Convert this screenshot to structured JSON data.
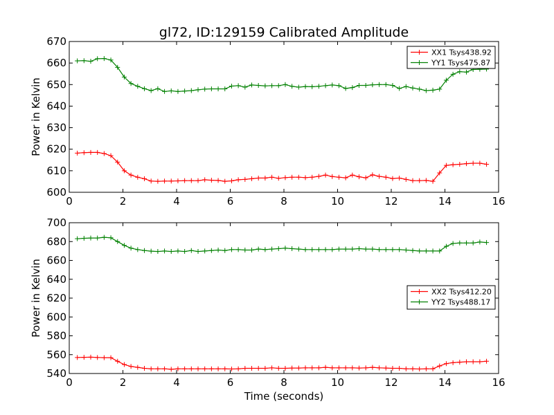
{
  "figure": {
    "title": "gl72, ID:129159 Calibrated Amplitude",
    "xlabel": "Time (seconds)"
  },
  "chart_data": [
    {
      "type": "line",
      "ylabel": "Power in Kelvin",
      "xlim": [
        0,
        16
      ],
      "ylim": [
        600,
        670
      ],
      "xticks": [
        0,
        2,
        4,
        6,
        8,
        10,
        12,
        14,
        16
      ],
      "yticks": [
        600,
        610,
        620,
        630,
        640,
        650,
        660,
        670
      ],
      "grid": false,
      "legend_position": "top-right",
      "x": [
        0.3,
        0.55,
        0.8,
        1.05,
        1.3,
        1.55,
        1.8,
        2.05,
        2.3,
        2.55,
        2.8,
        3.05,
        3.3,
        3.55,
        3.8,
        4.05,
        4.3,
        4.55,
        4.8,
        5.05,
        5.3,
        5.55,
        5.8,
        6.05,
        6.3,
        6.55,
        6.8,
        7.05,
        7.3,
        7.55,
        7.8,
        8.05,
        8.3,
        8.55,
        8.8,
        9.05,
        9.3,
        9.55,
        9.8,
        10.05,
        10.3,
        10.55,
        10.8,
        11.05,
        11.3,
        11.55,
        11.8,
        12.05,
        12.3,
        12.55,
        12.8,
        13.05,
        13.3,
        13.55,
        13.8,
        14.05,
        14.3,
        14.55,
        14.8,
        15.05,
        15.3,
        15.55
      ],
      "series": [
        {
          "name": "XX1 Tsys438.92",
          "color": "#ff0000",
          "values": [
            618.2,
            618.4,
            618.5,
            618.5,
            618.0,
            617.0,
            614.0,
            610.0,
            608.0,
            607.0,
            606.3,
            605.2,
            605.1,
            605.2,
            605.2,
            605.3,
            605.4,
            605.4,
            605.4,
            605.8,
            605.6,
            605.5,
            605.1,
            605.3,
            605.8,
            606.0,
            606.3,
            606.6,
            606.6,
            607.0,
            606.5,
            606.8,
            607.0,
            607.0,
            606.8,
            607.0,
            607.4,
            608.0,
            607.3,
            607.0,
            606.7,
            608.0,
            607.2,
            606.7,
            608.1,
            607.4,
            607.0,
            606.4,
            606.6,
            606.0,
            605.4,
            605.4,
            605.5,
            605.1,
            609.0,
            612.5,
            612.8,
            613.0,
            613.3,
            613.5,
            613.5,
            613.0
          ]
        },
        {
          "name": "YY1 Tsys475.87",
          "color": "#008000",
          "values": [
            661.0,
            661.1,
            660.8,
            662.0,
            662.1,
            661.4,
            658.0,
            653.5,
            650.5,
            649.2,
            648.1,
            647.2,
            648.1,
            646.8,
            647.1,
            646.8,
            647.0,
            647.2,
            647.6,
            647.9,
            648.0,
            648.0,
            648.0,
            649.3,
            649.5,
            648.8,
            649.8,
            649.6,
            649.4,
            649.5,
            649.5,
            650.0,
            649.2,
            648.8,
            649.1,
            649.0,
            649.2,
            649.5,
            649.8,
            649.5,
            648.2,
            648.6,
            649.6,
            649.6,
            649.9,
            650.0,
            650.0,
            649.6,
            648.2,
            649.1,
            648.4,
            647.9,
            647.2,
            647.4,
            647.9,
            652.0,
            654.8,
            656.0,
            655.8,
            657.0,
            657.1,
            657.2
          ]
        }
      ]
    },
    {
      "type": "line",
      "ylabel": "Power in Kelvin",
      "xlabel": "Time (seconds)",
      "xlim": [
        0,
        16
      ],
      "ylim": [
        540,
        700
      ],
      "xticks": [
        0,
        2,
        4,
        6,
        8,
        10,
        12,
        14,
        16
      ],
      "yticks": [
        540,
        560,
        580,
        600,
        620,
        640,
        660,
        680,
        700
      ],
      "grid": false,
      "legend_position": "center-right",
      "x": [
        0.3,
        0.55,
        0.8,
        1.05,
        1.3,
        1.55,
        1.8,
        2.05,
        2.3,
        2.55,
        2.8,
        3.05,
        3.3,
        3.55,
        3.8,
        4.05,
        4.3,
        4.55,
        4.8,
        5.05,
        5.3,
        5.55,
        5.8,
        6.05,
        6.3,
        6.55,
        6.8,
        7.05,
        7.3,
        7.55,
        7.8,
        8.05,
        8.3,
        8.55,
        8.8,
        9.05,
        9.3,
        9.55,
        9.8,
        10.05,
        10.3,
        10.55,
        10.8,
        11.05,
        11.3,
        11.55,
        11.8,
        12.05,
        12.3,
        12.55,
        12.8,
        13.05,
        13.3,
        13.55,
        13.8,
        14.05,
        14.3,
        14.55,
        14.8,
        15.05,
        15.3,
        15.55
      ],
      "series": [
        {
          "name": "XX2 Tsys412.20",
          "color": "#ff0000",
          "values": [
            557.0,
            557.2,
            557.3,
            557.0,
            556.8,
            556.8,
            553.0,
            549.5,
            547.5,
            546.5,
            545.5,
            545.0,
            545.0,
            545.0,
            544.5,
            545.0,
            545.0,
            545.0,
            545.0,
            545.0,
            545.0,
            545.0,
            545.0,
            544.8,
            545.0,
            545.5,
            545.5,
            545.5,
            545.5,
            546.0,
            545.5,
            545.5,
            545.8,
            545.8,
            546.0,
            546.0,
            546.0,
            546.5,
            546.0,
            546.0,
            546.0,
            546.0,
            545.8,
            546.0,
            546.5,
            546.0,
            545.8,
            545.5,
            545.5,
            545.0,
            545.0,
            544.8,
            545.0,
            545.0,
            548.0,
            550.5,
            551.5,
            552.0,
            552.5,
            552.5,
            552.5,
            553.0
          ]
        },
        {
          "name": "YY2 Tsys488.17",
          "color": "#008000",
          "values": [
            683.0,
            683.5,
            683.8,
            683.8,
            684.5,
            684.0,
            680.0,
            676.0,
            673.0,
            671.5,
            670.5,
            669.8,
            669.5,
            670.0,
            669.5,
            670.0,
            669.5,
            670.5,
            669.5,
            670.0,
            670.5,
            671.0,
            670.5,
            671.5,
            671.5,
            671.0,
            671.0,
            672.0,
            671.5,
            672.0,
            672.5,
            673.0,
            672.5,
            672.0,
            671.5,
            671.5,
            671.5,
            671.5,
            671.5,
            672.0,
            672.0,
            672.0,
            672.5,
            672.0,
            672.0,
            671.5,
            671.5,
            671.5,
            671.5,
            671.0,
            670.5,
            670.0,
            670.0,
            670.0,
            670.0,
            675.0,
            678.0,
            678.5,
            678.5,
            678.5,
            679.5,
            679.0
          ]
        }
      ]
    }
  ]
}
